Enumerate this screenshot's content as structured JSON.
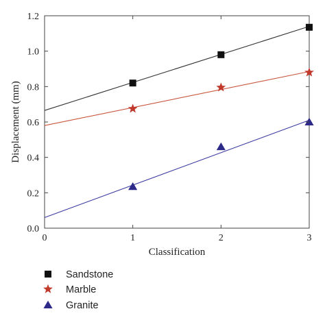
{
  "chart_data": {
    "type": "scatter",
    "title": "",
    "xlabel": "Classification",
    "ylabel": "Displacement (mm)",
    "xlim": [
      0,
      3
    ],
    "ylim": [
      0,
      1.2
    ],
    "x_ticks": [
      "0",
      "1",
      "2",
      "3"
    ],
    "y_ticks": [
      "0.0",
      "0.2",
      "0.4",
      "0.6",
      "0.8",
      "1.0",
      "1.2"
    ],
    "grid": false,
    "legend_position": "bottom-left",
    "series": [
      {
        "name": "Sandstone",
        "marker": "square",
        "color": "#111111",
        "line_color": "#333333",
        "x": [
          1,
          2,
          3
        ],
        "y": [
          0.82,
          0.98,
          1.135
        ],
        "fit_line": {
          "x": [
            0,
            3
          ],
          "y": [
            0.665,
            1.14
          ]
        }
      },
      {
        "name": "Marble",
        "marker": "star",
        "color": "#c0392b",
        "line_color": "#c8553d",
        "x": [
          1,
          2,
          3
        ],
        "y": [
          0.675,
          0.795,
          0.88
        ],
        "fit_line": {
          "x": [
            0,
            3
          ],
          "y": [
            0.58,
            0.885
          ]
        }
      },
      {
        "name": "Granite",
        "marker": "triangle",
        "color": "#2e2a8a",
        "line_color": "#3a3aa0",
        "x": [
          1,
          2,
          3
        ],
        "y": [
          0.235,
          0.46,
          0.6
        ],
        "fit_line": {
          "x": [
            0,
            3
          ],
          "y": [
            0.06,
            0.61
          ]
        }
      }
    ]
  }
}
